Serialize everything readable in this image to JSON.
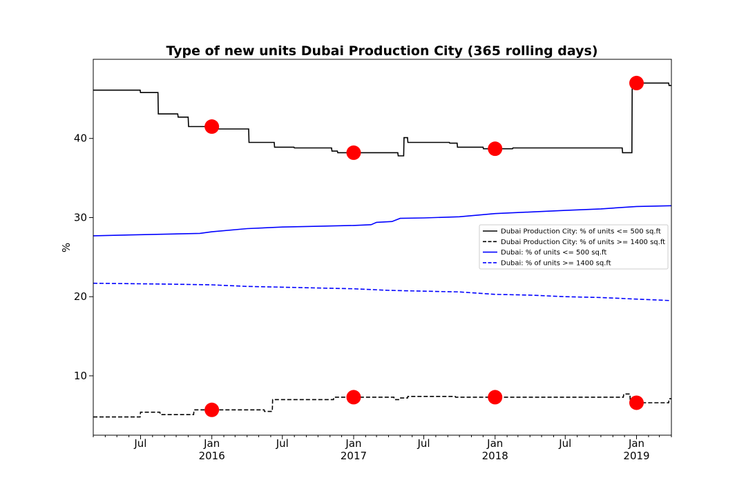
{
  "chart_data": {
    "type": "line",
    "title": "Type of new units Dubai Production City (365 rolling days)",
    "xlabel": "",
    "ylabel": "%",
    "xlim": [
      "2015-03-01",
      "2019-04-01"
    ],
    "ylim": [
      2.5,
      50
    ],
    "y_ticks": [
      10,
      20,
      30,
      40
    ],
    "x_ticks": [
      {
        "date": "2015-07-01",
        "label": "Jul",
        "sublabel": ""
      },
      {
        "date": "2016-01-01",
        "label": "Jan",
        "sublabel": "2016"
      },
      {
        "date": "2016-07-01",
        "label": "Jul",
        "sublabel": ""
      },
      {
        "date": "2017-01-01",
        "label": "Jan",
        "sublabel": "2017"
      },
      {
        "date": "2017-07-01",
        "label": "Jul",
        "sublabel": ""
      },
      {
        "date": "2018-01-01",
        "label": "Jan",
        "sublabel": "2018"
      },
      {
        "date": "2018-07-01",
        "label": "Jul",
        "sublabel": ""
      },
      {
        "date": "2019-01-01",
        "label": "Jan",
        "sublabel": "2019"
      }
    ],
    "legend_position": "right",
    "grid": false,
    "series": [
      {
        "name": "Dubai Production City: % of units <= 500 sq.ft",
        "color": "#000000",
        "dashed": false,
        "step": true,
        "points": [
          [
            "2015-03-01",
            46.1
          ],
          [
            "2015-06-30",
            46.1
          ],
          [
            "2015-07-01",
            45.8
          ],
          [
            "2015-08-15",
            45.8
          ],
          [
            "2015-08-16",
            43.1
          ],
          [
            "2015-10-05",
            43.1
          ],
          [
            "2015-10-06",
            42.7
          ],
          [
            "2015-11-01",
            42.7
          ],
          [
            "2015-11-02",
            41.5
          ],
          [
            "2016-01-15",
            41.5
          ],
          [
            "2016-01-16",
            41.2
          ],
          [
            "2016-04-05",
            41.2
          ],
          [
            "2016-04-06",
            39.5
          ],
          [
            "2016-06-10",
            39.5
          ],
          [
            "2016-06-11",
            38.9
          ],
          [
            "2016-07-31",
            38.9
          ],
          [
            "2016-08-01",
            38.8
          ],
          [
            "2016-11-05",
            38.8
          ],
          [
            "2016-11-06",
            38.4
          ],
          [
            "2016-11-20",
            38.4
          ],
          [
            "2016-11-21",
            38.2
          ],
          [
            "2017-04-25",
            38.2
          ],
          [
            "2017-04-26",
            37.8
          ],
          [
            "2017-05-10",
            37.8
          ],
          [
            "2017-05-11",
            40.1
          ],
          [
            "2017-05-20",
            40.1
          ],
          [
            "2017-05-21",
            39.5
          ],
          [
            "2017-09-05",
            39.5
          ],
          [
            "2017-09-06",
            39.4
          ],
          [
            "2017-09-25",
            39.4
          ],
          [
            "2017-09-26",
            38.9
          ],
          [
            "2017-12-01",
            38.9
          ],
          [
            "2017-12-02",
            38.7
          ],
          [
            "2018-02-15",
            38.7
          ],
          [
            "2018-02-16",
            38.8
          ],
          [
            "2018-11-25",
            38.8
          ],
          [
            "2018-11-26",
            38.2
          ],
          [
            "2018-12-20",
            38.2
          ],
          [
            "2018-12-21",
            47.5
          ],
          [
            "2018-12-31",
            47.5
          ],
          [
            "2019-01-01",
            47.0
          ],
          [
            "2019-03-25",
            47.0
          ],
          [
            "2019-03-26",
            46.7
          ],
          [
            "2019-04-01",
            46.7
          ]
        ]
      },
      {
        "name": "Dubai Production City: % of units >= 1400 sq.ft",
        "color": "#000000",
        "dashed": true,
        "step": true,
        "points": [
          [
            "2015-03-01",
            4.8
          ],
          [
            "2015-06-30",
            4.8
          ],
          [
            "2015-07-01",
            5.4
          ],
          [
            "2015-08-20",
            5.4
          ],
          [
            "2015-08-21",
            5.1
          ],
          [
            "2015-11-15",
            5.1
          ],
          [
            "2015-11-16",
            5.7
          ],
          [
            "2016-05-15",
            5.7
          ],
          [
            "2016-05-16",
            5.5
          ],
          [
            "2016-06-05",
            5.5
          ],
          [
            "2016-06-06",
            7.0
          ],
          [
            "2016-11-10",
            7.0
          ],
          [
            "2016-11-11",
            7.3
          ],
          [
            "2017-04-15",
            7.3
          ],
          [
            "2017-04-16",
            7.0
          ],
          [
            "2017-05-01",
            7.0
          ],
          [
            "2017-05-02",
            7.2
          ],
          [
            "2017-05-20",
            7.2
          ],
          [
            "2017-05-21",
            7.4
          ],
          [
            "2017-09-20",
            7.4
          ],
          [
            "2017-09-21",
            7.3
          ],
          [
            "2018-11-28",
            7.3
          ],
          [
            "2018-11-29",
            7.7
          ],
          [
            "2018-12-15",
            7.7
          ],
          [
            "2018-12-16",
            6.6
          ],
          [
            "2019-03-25",
            6.6
          ],
          [
            "2019-03-26",
            7.1
          ],
          [
            "2019-04-01",
            7.1
          ]
        ]
      },
      {
        "name": "Dubai: % of units <= 500 sq.ft",
        "color": "#0000ff",
        "dashed": false,
        "step": false,
        "points": [
          [
            "2015-03-01",
            27.7
          ],
          [
            "2015-06-01",
            27.8
          ],
          [
            "2015-09-01",
            27.9
          ],
          [
            "2015-12-01",
            28.0
          ],
          [
            "2016-01-01",
            28.2
          ],
          [
            "2016-04-01",
            28.6
          ],
          [
            "2016-07-01",
            28.8
          ],
          [
            "2016-10-01",
            28.9
          ],
          [
            "2017-01-01",
            29.0
          ],
          [
            "2017-02-15",
            29.1
          ],
          [
            "2017-03-01",
            29.4
          ],
          [
            "2017-04-10",
            29.5
          ],
          [
            "2017-05-01",
            29.9
          ],
          [
            "2017-07-01",
            29.95
          ],
          [
            "2017-10-01",
            30.1
          ],
          [
            "2018-01-01",
            30.5
          ],
          [
            "2018-04-01",
            30.7
          ],
          [
            "2018-07-01",
            30.9
          ],
          [
            "2018-10-01",
            31.1
          ],
          [
            "2019-01-01",
            31.4
          ],
          [
            "2019-04-01",
            31.5
          ]
        ]
      },
      {
        "name": "Dubai: % of units >= 1400 sq.ft",
        "color": "#0000ff",
        "dashed": true,
        "step": false,
        "points": [
          [
            "2015-03-01",
            21.7
          ],
          [
            "2015-09-01",
            21.6
          ],
          [
            "2016-01-01",
            21.5
          ],
          [
            "2016-04-01",
            21.3
          ],
          [
            "2016-07-01",
            21.2
          ],
          [
            "2016-10-01",
            21.1
          ],
          [
            "2017-01-01",
            21.0
          ],
          [
            "2017-04-01",
            20.8
          ],
          [
            "2017-07-01",
            20.7
          ],
          [
            "2017-10-01",
            20.6
          ],
          [
            "2018-01-01",
            20.3
          ],
          [
            "2018-04-01",
            20.2
          ],
          [
            "2018-07-01",
            20.0
          ],
          [
            "2018-10-01",
            19.9
          ],
          [
            "2019-01-01",
            19.7
          ],
          [
            "2019-04-01",
            19.5
          ]
        ]
      }
    ],
    "markers": [
      {
        "date": "2016-01-01",
        "value": 41.5,
        "color": "#ff0000"
      },
      {
        "date": "2017-01-01",
        "value": 38.2,
        "color": "#ff0000"
      },
      {
        "date": "2018-01-01",
        "value": 38.7,
        "color": "#ff0000"
      },
      {
        "date": "2019-01-01",
        "value": 47.0,
        "color": "#ff0000"
      },
      {
        "date": "2016-01-01",
        "value": 5.7,
        "color": "#ff0000"
      },
      {
        "date": "2017-01-01",
        "value": 7.3,
        "color": "#ff0000"
      },
      {
        "date": "2018-01-01",
        "value": 7.3,
        "color": "#ff0000"
      },
      {
        "date": "2019-01-01",
        "value": 6.6,
        "color": "#ff0000"
      }
    ]
  }
}
